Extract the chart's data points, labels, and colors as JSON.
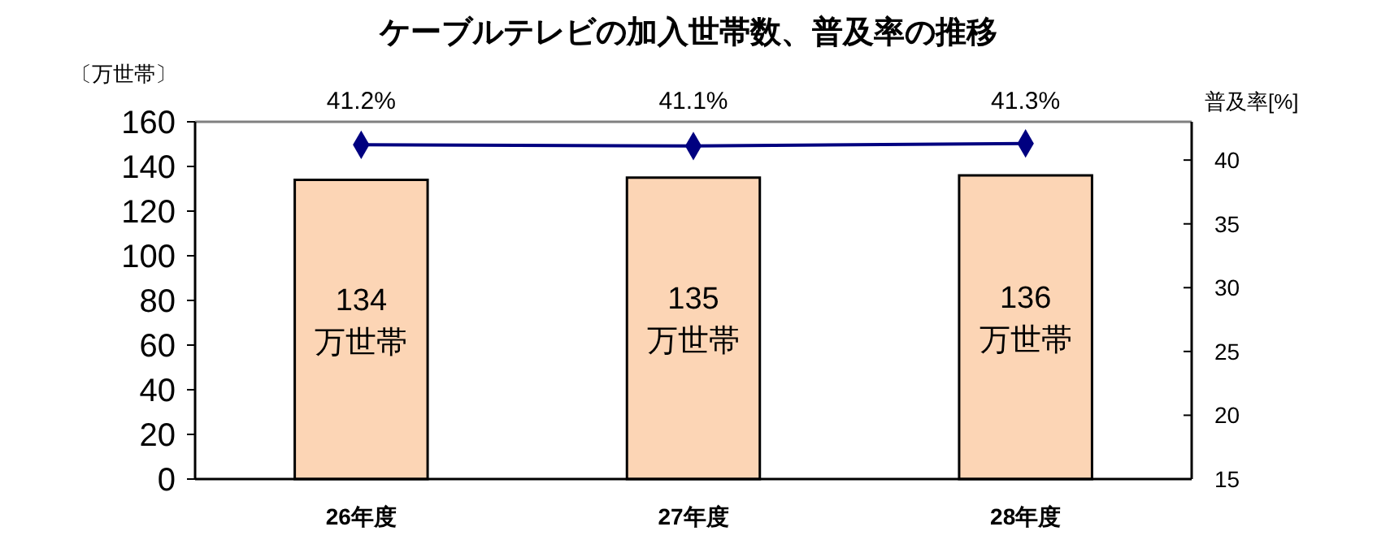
{
  "chart_data": {
    "type": "bar",
    "title": "ケーブルテレビの加入世帯数、普及率の推移",
    "ylabel": "〔万世帯〕",
    "y2label": "普及率[%]",
    "categories": [
      "26年度",
      "27年度",
      "28年度"
    ],
    "series": [
      {
        "color": "#fcd5b5",
        "values": [
          134,
          135,
          136
        ],
        "value_labels": [
          "134 万世帯",
          "135 万世帯",
          "136 万世帯"
        ]
      },
      {
        "type": "line",
        "axis": "y2",
        "color": "#000080",
        "marker": "diamond",
        "values": [
          41.2,
          41.1,
          41.3
        ],
        "value_labels": [
          "41.2%",
          "41.1%",
          "41.3%"
        ]
      }
    ],
    "ylim": [
      0,
      160
    ],
    "yticks": [
      0,
      20,
      40,
      60,
      80,
      100,
      120,
      140,
      160
    ],
    "y2lim": [
      15,
      43
    ],
    "y2ticks": [
      15,
      20,
      25,
      30,
      35,
      40
    ],
    "grid": false
  }
}
